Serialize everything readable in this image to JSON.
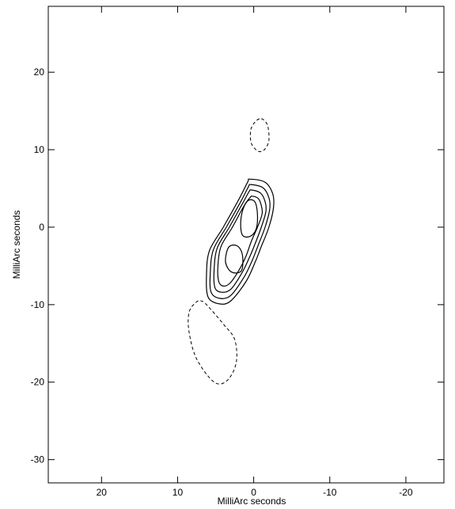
{
  "chart_data": {
    "type": "contour",
    "title": "",
    "xlabel": "MilliArc seconds",
    "ylabel": "MilliArc seconds",
    "xlim": [
      27,
      -25
    ],
    "ylim": [
      -33,
      28.5
    ],
    "x_axis_reversed": true,
    "grid": false,
    "legend": "none",
    "x_ticks": [
      20,
      10,
      0,
      -10,
      -20
    ],
    "x_tick_labels": [
      "20",
      "10",
      "0",
      "-10",
      "-20"
    ],
    "y_ticks": [
      20,
      10,
      0,
      -10,
      -20,
      -30
    ],
    "y_tick_labels": [
      "20",
      "10",
      "0",
      "-10",
      "-20",
      "-30"
    ],
    "contours": [
      {
        "style": "solid",
        "level": 1,
        "points": [
          [
            0.5,
            6.2
          ],
          [
            -1.5,
            5.8
          ],
          [
            -2.5,
            4.3
          ],
          [
            -2.6,
            2.5
          ],
          [
            -2.0,
            0
          ],
          [
            -1.0,
            -2.5
          ],
          [
            -0.2,
            -4.5
          ],
          [
            1.0,
            -7.0
          ],
          [
            3.0,
            -9.5
          ],
          [
            4.5,
            -9.9
          ],
          [
            6.0,
            -9.0
          ],
          [
            6.2,
            -6.0
          ],
          [
            5.8,
            -3.0
          ],
          [
            4.0,
            0
          ],
          [
            2.0,
            3.5
          ],
          [
            0.8,
            5.8
          ],
          [
            0.5,
            6.2
          ]
        ]
      },
      {
        "style": "solid",
        "level": 2,
        "points": [
          [
            0.4,
            5.5
          ],
          [
            -1.2,
            5.1
          ],
          [
            -2.0,
            3.8
          ],
          [
            -2.1,
            2.3
          ],
          [
            -1.5,
            0
          ],
          [
            -0.6,
            -2.3
          ],
          [
            0.2,
            -4.3
          ],
          [
            1.3,
            -6.5
          ],
          [
            3.0,
            -8.8
          ],
          [
            4.4,
            -9.2
          ],
          [
            5.6,
            -8.4
          ],
          [
            5.7,
            -5.8
          ],
          [
            5.3,
            -2.9
          ],
          [
            3.6,
            0
          ],
          [
            1.7,
            3.3
          ],
          [
            0.7,
            5.2
          ],
          [
            0.4,
            5.5
          ]
        ]
      },
      {
        "style": "solid",
        "level": 3,
        "points": [
          [
            0.3,
            4.8
          ],
          [
            -0.9,
            4.4
          ],
          [
            -1.5,
            3.3
          ],
          [
            -1.6,
            2.0
          ],
          [
            -1.0,
            0
          ],
          [
            -0.2,
            -2.1
          ],
          [
            0.6,
            -4.0
          ],
          [
            1.6,
            -6.0
          ],
          [
            3.0,
            -8.0
          ],
          [
            4.2,
            -8.4
          ],
          [
            5.1,
            -7.8
          ],
          [
            5.2,
            -5.5
          ],
          [
            4.8,
            -2.7
          ],
          [
            3.2,
            0
          ],
          [
            1.5,
            3.0
          ],
          [
            0.6,
            4.6
          ],
          [
            0.3,
            4.8
          ]
        ]
      },
      {
        "style": "solid",
        "level": 4,
        "points": [
          [
            0.2,
            4.0
          ],
          [
            -0.6,
            3.7
          ],
          [
            -1.0,
            2.8
          ],
          [
            -1.1,
            1.7
          ],
          [
            -0.5,
            0
          ],
          [
            0.3,
            -1.8
          ],
          [
            1.0,
            -3.7
          ],
          [
            1.9,
            -5.5
          ],
          [
            3.1,
            -7.2
          ],
          [
            4.0,
            -7.6
          ],
          [
            4.6,
            -7.0
          ],
          [
            4.7,
            -5.0
          ],
          [
            4.3,
            -2.5
          ],
          [
            2.8,
            0
          ],
          [
            1.3,
            2.7
          ],
          [
            0.5,
            3.8
          ],
          [
            0.2,
            4.0
          ]
        ]
      },
      {
        "style": "solid",
        "level": 5,
        "points": [
          [
            0.6,
            3.5
          ],
          [
            -0.2,
            3.2
          ],
          [
            -0.5,
            1.5
          ],
          [
            -0.3,
            -0.3
          ],
          [
            0.5,
            -1.2
          ],
          [
            1.5,
            -1.0
          ],
          [
            1.7,
            0.8
          ],
          [
            1.3,
            2.6
          ],
          [
            0.6,
            3.5
          ]
        ]
      },
      {
        "style": "solid",
        "level": 5,
        "points": [
          [
            2.2,
            -2.4
          ],
          [
            1.5,
            -3.5
          ],
          [
            1.6,
            -5.6
          ],
          [
            2.9,
            -5.8
          ],
          [
            3.7,
            -4.5
          ],
          [
            3.3,
            -2.6
          ],
          [
            2.2,
            -2.4
          ]
        ]
      },
      {
        "style": "dashed",
        "level": -1,
        "points": [
          [
            -1.0,
            14.0
          ],
          [
            -1.8,
            13.2
          ],
          [
            -2.0,
            11.2
          ],
          [
            -1.4,
            10.0
          ],
          [
            -0.6,
            9.8
          ],
          [
            0.3,
            10.8
          ],
          [
            0.4,
            12.5
          ],
          [
            -0.2,
            13.6
          ],
          [
            -1.0,
            14.0
          ]
        ]
      },
      {
        "style": "dashed",
        "level": -1,
        "points": [
          [
            7.0,
            -9.5
          ],
          [
            6.2,
            -10.0
          ],
          [
            4.0,
            -12.5
          ],
          [
            2.5,
            -14.5
          ],
          [
            2.3,
            -17.5
          ],
          [
            3.5,
            -19.8
          ],
          [
            5.2,
            -20.0
          ],
          [
            7.5,
            -17.0
          ],
          [
            8.5,
            -13.5
          ],
          [
            8.5,
            -11.0
          ],
          [
            7.7,
            -9.8
          ],
          [
            7.0,
            -9.5
          ]
        ]
      }
    ]
  }
}
